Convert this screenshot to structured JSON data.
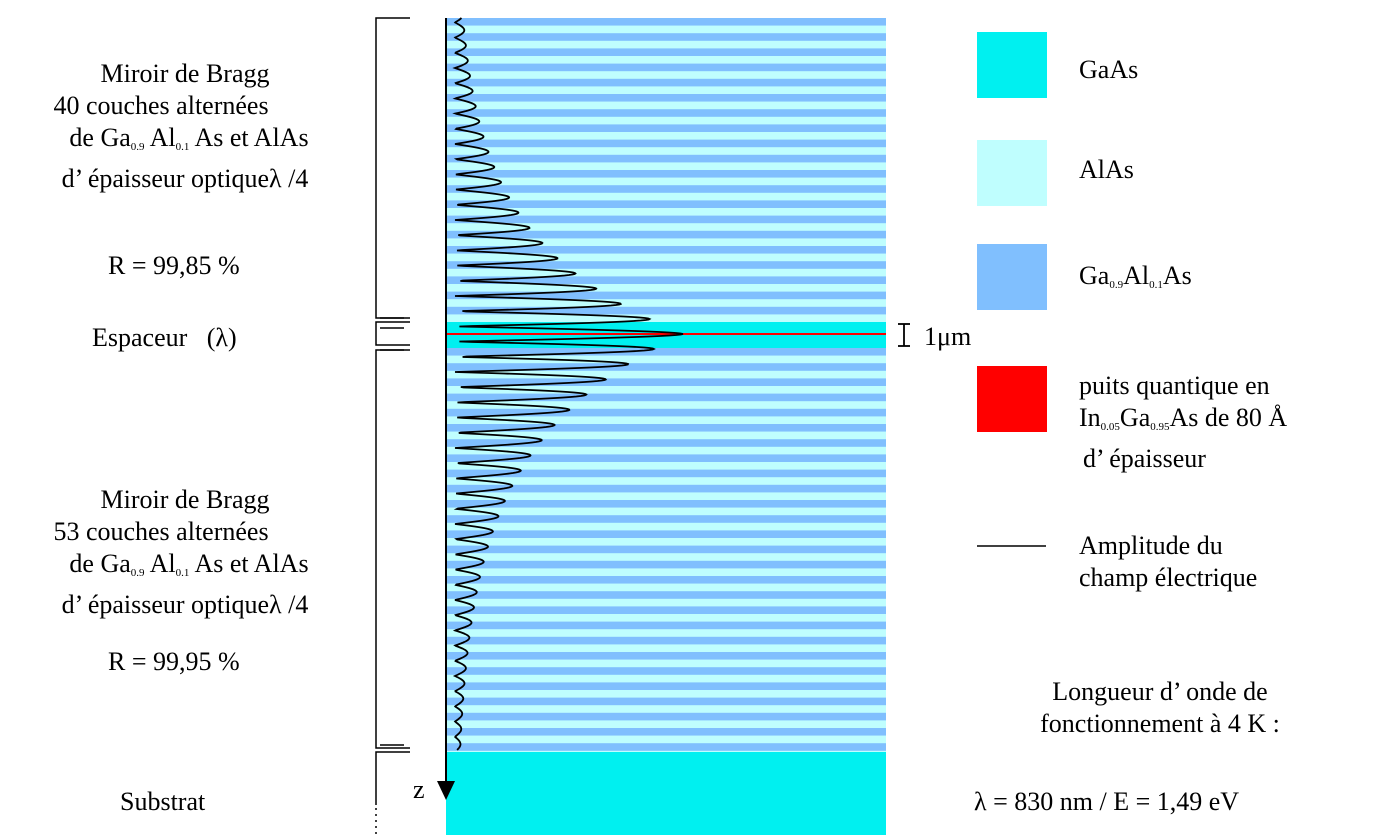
{
  "colors": {
    "gaas": "#00f0f0",
    "alas": "#bffefe",
    "gaalas": "#80bffe",
    "quantum_well": "#ff0000",
    "field": "#000000"
  },
  "left_labels": {
    "top_mirror": {
      "line1": "Miroir de Bragg",
      "line2": "40 couches alternées",
      "line3_a": "de Ga",
      "line3_sub1": "0.9",
      "line3_b": "Al",
      "line3_sub2": "0.1",
      "line3_c": "As et AlAs",
      "line4": "d’ épaisseur optiqueλ /4",
      "reflectivity": "R = 99,85 %"
    },
    "spacer": "Espaceur   (λ)",
    "bottom_mirror": {
      "line1": "Miroir de Bragg",
      "line2": "53 couches alternées",
      "line3_a": "de Ga",
      "line3_sub1": "0.9",
      "line3_b": "Al",
      "line3_sub2": "0.1",
      "line3_c": "As et AlAs",
      "line4": "d’ épaisseur optiqueλ /4",
      "reflectivity": "R = 99,95 %"
    },
    "substrate": "Substrat"
  },
  "scale_label": "1μm",
  "axis_label": "z",
  "legend": {
    "gaas": "GaAs",
    "alas": "AlAs",
    "gaalas_a": "Ga",
    "gaalas_sub1": "0.9",
    "gaalas_b": "Al",
    "gaalas_sub2": "0.1",
    "gaalas_c": "As",
    "qw_line1": "puits quantique en",
    "qw_a": "In",
    "qw_sub1": "0.05",
    "qw_b": "Ga",
    "qw_sub2": "0.95",
    "qw_c": "As de 80 Å",
    "qw_line3": "d’ épaisseur",
    "field_line1": "Amplitude du",
    "field_line2": "champ électrique"
  },
  "operating": {
    "line1": "Longueur d’ onde de",
    "line2": "fonctionnement à 4 K :",
    "line3": "λ = 830 nm  /  E = 1,49 eV"
  }
}
